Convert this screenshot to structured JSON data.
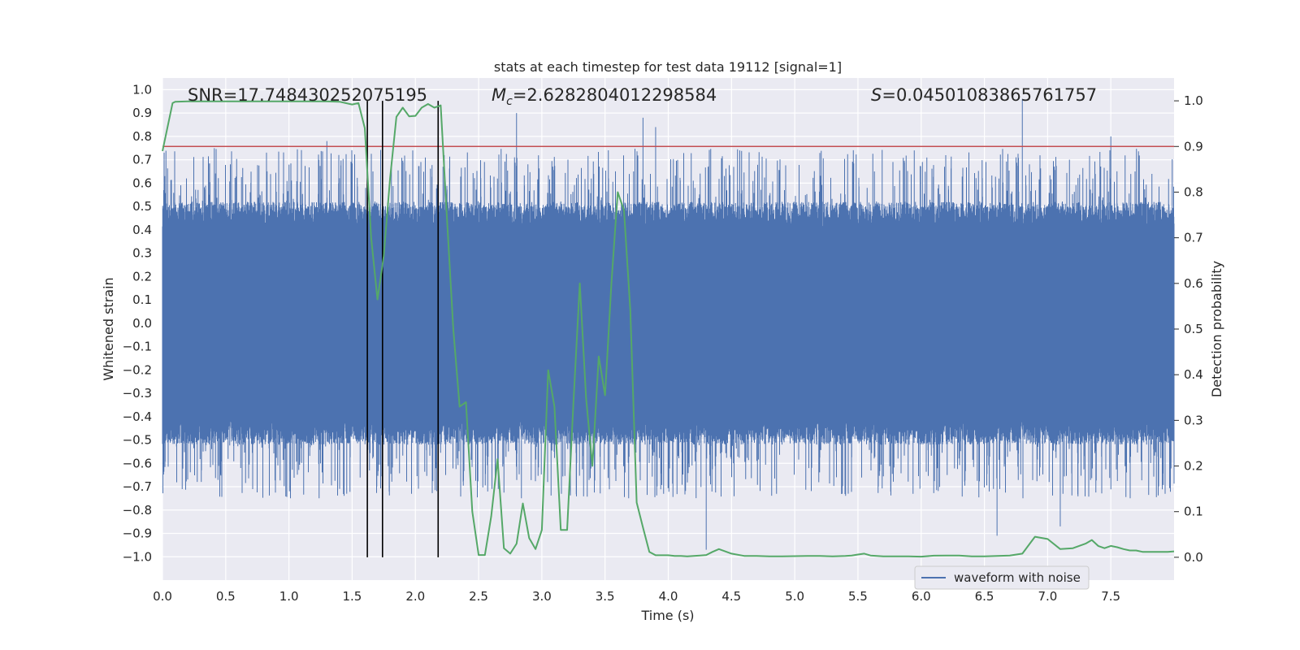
{
  "chart_data": {
    "type": "line",
    "title": "stats at each timestep for test data 19112 [signal=1]",
    "xlabel": "Time (s)",
    "ylabel_left": "Whitened strain",
    "ylabel_right": "Detection probability",
    "xlim": [
      0.0,
      8.0
    ],
    "ylim_left": [
      -1.1,
      1.05
    ],
    "ylim_right": [
      -0.05,
      1.05
    ],
    "x_ticks": [
      "0.0",
      "0.5",
      "1.0",
      "1.5",
      "2.0",
      "2.5",
      "3.0",
      "3.5",
      "4.0",
      "4.5",
      "5.0",
      "5.5",
      "6.0",
      "6.5",
      "7.0",
      "7.5"
    ],
    "y_left_ticks": [
      "1.0",
      "0.9",
      "0.8",
      "0.7",
      "0.6",
      "0.5",
      "0.4",
      "0.3",
      "0.2",
      "0.1",
      "0.0",
      "−0.1",
      "−0.2",
      "−0.3",
      "−0.4",
      "−0.5",
      "−0.6",
      "−0.7",
      "−0.8",
      "−0.9",
      "−1.0"
    ],
    "y_right_ticks": [
      "1.0",
      "0.9",
      "0.8",
      "0.7",
      "0.6",
      "0.5",
      "0.4",
      "0.3",
      "0.2",
      "0.1",
      "0.0"
    ],
    "grid": true,
    "background": "#eaeaf2",
    "annotations": {
      "snr": "SNR=17.748430252075195",
      "mc_symbol": "M",
      "mc_sub": "c",
      "mc_value": "=2.6282804012298584",
      "s_symbol": "S",
      "s_value": "=0.04501083865761757"
    },
    "series": [
      {
        "name": "waveform with noise",
        "axis": "left",
        "color": "#4c72b0",
        "kind": "dense noise",
        "core_envelope": [
          -0.4,
          0.4
        ],
        "spike_peaks": [
          {
            "x": 1.3,
            "y": 0.78
          },
          {
            "x": 2.8,
            "y": 0.9
          },
          {
            "x": 3.8,
            "y": 0.88
          },
          {
            "x": 3.9,
            "y": 0.84
          },
          {
            "x": 6.8,
            "y": 0.96
          },
          {
            "x": 7.5,
            "y": 0.8
          },
          {
            "x": 6.6,
            "y": -0.91
          },
          {
            "x": 7.1,
            "y": -0.87
          },
          {
            "x": 4.3,
            "y": -0.97
          }
        ]
      },
      {
        "name": "",
        "axis": "right",
        "color": "#55a868",
        "x": [
          0.0,
          0.08,
          0.1,
          0.2,
          0.3,
          0.4,
          0.5,
          0.6,
          0.7,
          0.8,
          0.9,
          1.0,
          1.1,
          1.2,
          1.3,
          1.4,
          1.5,
          1.55,
          1.6,
          1.65,
          1.7,
          1.75,
          1.8,
          1.85,
          1.9,
          1.95,
          2.0,
          2.05,
          2.1,
          2.15,
          2.2,
          2.25,
          2.3,
          2.35,
          2.4,
          2.45,
          2.5,
          2.55,
          2.6,
          2.65,
          2.7,
          2.75,
          2.8,
          2.85,
          2.9,
          2.95,
          3.0,
          3.05,
          3.1,
          3.15,
          3.2,
          3.25,
          3.3,
          3.35,
          3.4,
          3.45,
          3.5,
          3.55,
          3.6,
          3.65,
          3.7,
          3.75,
          3.8,
          3.85,
          3.9,
          3.95,
          4.0,
          4.05,
          4.1,
          4.15,
          4.2,
          4.25,
          4.3,
          4.35,
          4.4,
          4.5,
          4.6,
          4.7,
          4.8,
          4.9,
          5.0,
          5.1,
          5.2,
          5.3,
          5.4,
          5.45,
          5.5,
          5.55,
          5.6,
          5.7,
          5.8,
          5.9,
          6.0,
          6.1,
          6.2,
          6.3,
          6.4,
          6.5,
          6.6,
          6.7,
          6.8,
          6.9,
          7.0,
          7.1,
          7.2,
          7.3,
          7.35,
          7.4,
          7.45,
          7.5,
          7.55,
          7.6,
          7.65,
          7.7,
          7.75,
          7.8,
          7.85,
          7.9,
          7.95,
          8.0
        ],
        "y": [
          0.89,
          0.995,
          0.998,
          0.999,
          0.999,
          0.999,
          0.999,
          0.999,
          0.999,
          0.999,
          0.999,
          0.999,
          0.999,
          0.999,
          0.999,
          0.998,
          0.992,
          0.995,
          0.94,
          0.7,
          0.565,
          0.66,
          0.83,
          0.965,
          0.985,
          0.966,
          0.967,
          0.985,
          0.993,
          0.985,
          0.99,
          0.74,
          0.5,
          0.33,
          0.34,
          0.1,
          0.005,
          0.005,
          0.09,
          0.215,
          0.02,
          0.008,
          0.03,
          0.118,
          0.042,
          0.018,
          0.06,
          0.41,
          0.33,
          0.06,
          0.06,
          0.34,
          0.6,
          0.35,
          0.2,
          0.44,
          0.355,
          0.6,
          0.8,
          0.76,
          0.54,
          0.12,
          0.065,
          0.012,
          0.0045,
          0.0045,
          0.0045,
          0.003,
          0.003,
          0.002,
          0.003,
          0.004,
          0.005,
          0.012,
          0.018,
          0.008,
          0.003,
          0.003,
          0.002,
          0.002,
          0.0025,
          0.003,
          0.003,
          0.002,
          0.003,
          0.004,
          0.006,
          0.008,
          0.004,
          0.002,
          0.002,
          0.002,
          0.0015,
          0.0035,
          0.004,
          0.004,
          0.002,
          0.002,
          0.003,
          0.004,
          0.008,
          0.045,
          0.04,
          0.018,
          0.02,
          0.03,
          0.038,
          0.025,
          0.02,
          0.025,
          0.022,
          0.018,
          0.015,
          0.015,
          0.012,
          0.012,
          0.012,
          0.012,
          0.012,
          0.013
        ]
      }
    ],
    "hline_right": {
      "y": 0.9,
      "color": "#c44e52"
    },
    "vlines_x": [
      1.62,
      1.74,
      2.18
    ],
    "vline_color": "#000000",
    "legend": {
      "placement": "bottom-right",
      "entries": [
        "waveform with noise"
      ]
    }
  }
}
